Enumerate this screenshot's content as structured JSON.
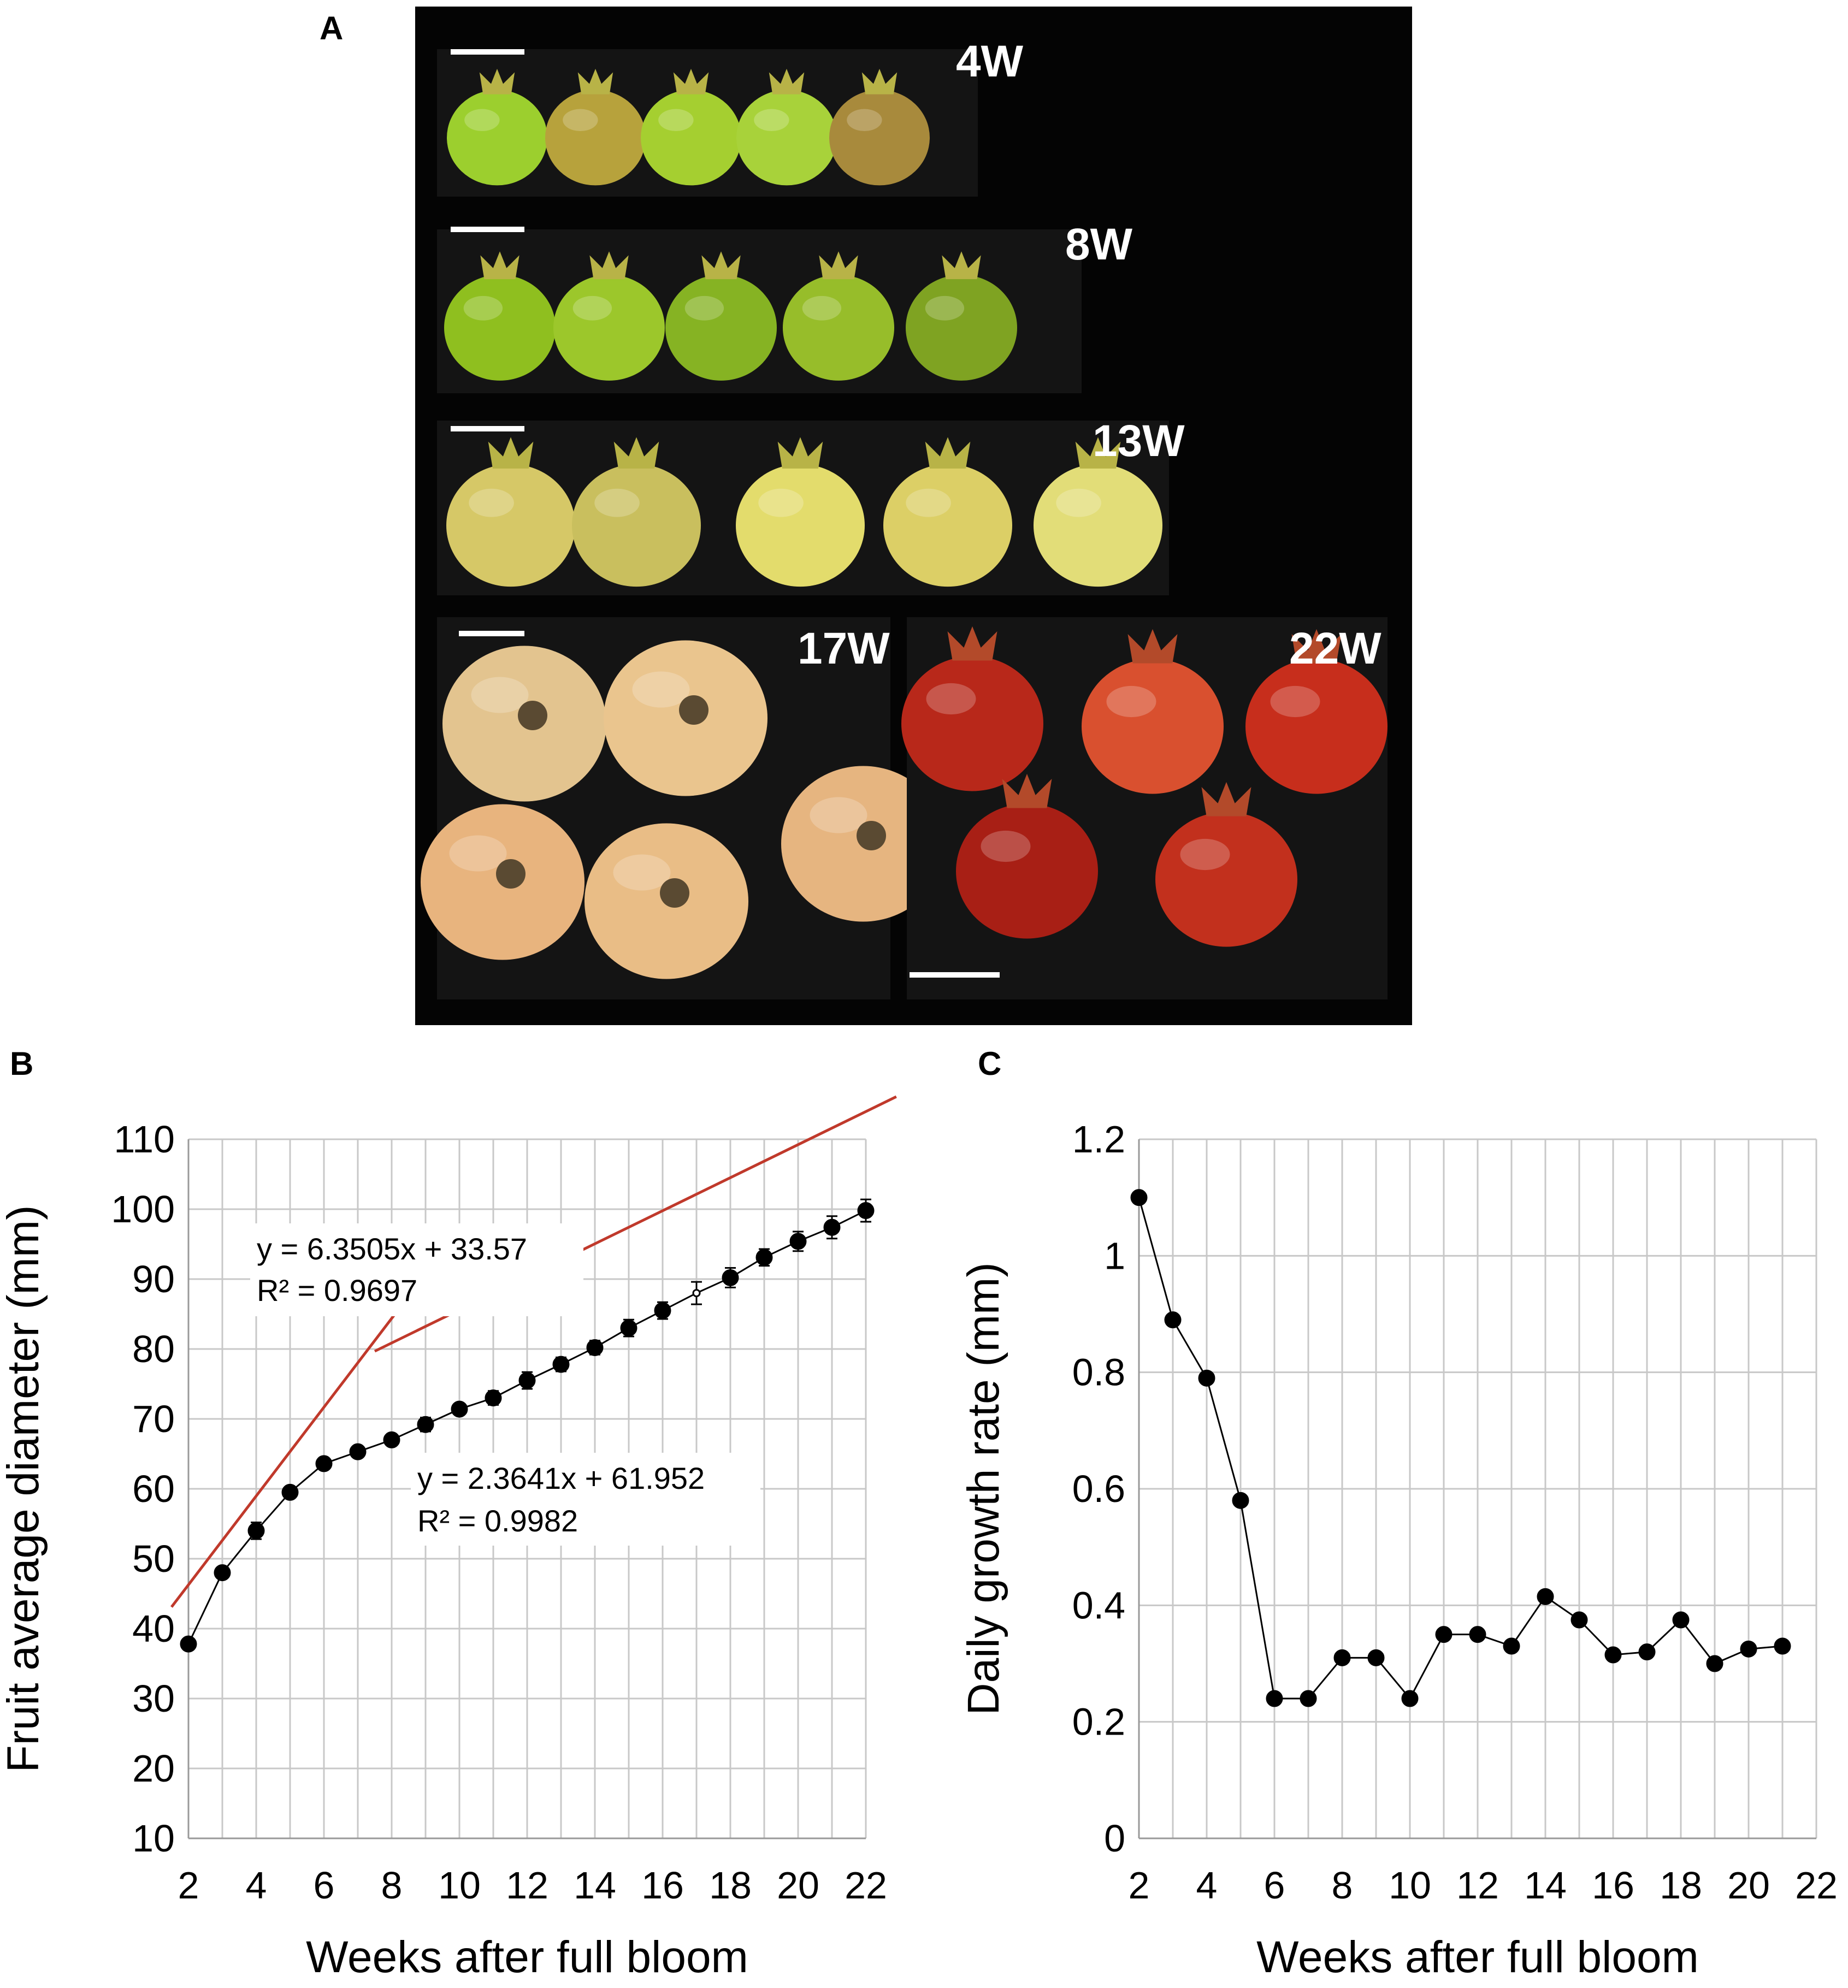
{
  "panels": {
    "a_label": "A",
    "b_label": "B",
    "c_label": "C"
  },
  "photo": {
    "rows": [
      {
        "label": "4W",
        "colors": [
          "#9ccf2e",
          "#b7a23c",
          "#a5cf30",
          "#a8d23a",
          "#a88a3c"
        ],
        "stage": "small"
      },
      {
        "label": "8W",
        "colors": [
          "#8fbf1f",
          "#9cc72b",
          "#86b323",
          "#97bd2a",
          "#7fa322"
        ],
        "stage": "medium"
      },
      {
        "label": "13W",
        "colors": [
          "#d6c867",
          "#c9bf5e",
          "#e3dc6c",
          "#dccf66",
          "#e2dd78"
        ],
        "stage": "large"
      },
      {
        "label": "17W",
        "colors": [
          "#e3c48f",
          "#eac58e",
          "#e6b580",
          "#e8b47e",
          "#e9bd86"
        ],
        "stage": "ripening"
      },
      {
        "label": "22W",
        "colors": [
          "#b8281a",
          "#d9502f",
          "#c72e1c",
          "#a81f15",
          "#c2301d"
        ],
        "stage": "mature"
      }
    ]
  },
  "chart_data": [
    {
      "type": "line",
      "panel": "B",
      "xlabel": "Weeks after full bloom",
      "ylabel": "Fruit average diameter  (mm)",
      "xlim": [
        2,
        22
      ],
      "ylim": [
        10,
        110
      ],
      "xticks": [
        2,
        4,
        6,
        8,
        10,
        12,
        14,
        16,
        18,
        20,
        22
      ],
      "yticks": [
        10,
        20,
        30,
        40,
        50,
        60,
        70,
        80,
        90,
        100,
        110
      ],
      "x": [
        2,
        3,
        4,
        5,
        6,
        7,
        8,
        9,
        10,
        11,
        12,
        13,
        14,
        15,
        16,
        17,
        18,
        19,
        20,
        21,
        22
      ],
      "y": [
        37.8,
        48,
        54,
        59.5,
        63.6,
        65.3,
        67,
        69.2,
        71.4,
        73,
        75.5,
        77.8,
        80.2,
        83,
        85.5,
        88,
        90.2,
        93.1,
        95.4,
        97.4,
        99.8
      ],
      "err": [
        0.6,
        0.6,
        1.2,
        0.5,
        0.8,
        0.8,
        0.8,
        1.0,
        0.8,
        1.0,
        1.2,
        1.0,
        1.0,
        1.2,
        1.2,
        1.6,
        1.4,
        1.2,
        1.4,
        1.6,
        1.6
      ],
      "hollow_marker_index": [
        15
      ],
      "grid": true,
      "trendlines": [
        {
          "equation": "y = 6.3505x + 33.57",
          "r2": "R² = 0.9697",
          "slope": 6.3505,
          "intercept": 33.57,
          "x_range": [
            1.5,
            9
          ],
          "color": "#c0392b"
        },
        {
          "equation": "y = 2.3641x + 61.952",
          "r2": "R² = 0.9982",
          "slope": 2.3641,
          "intercept": 61.952,
          "x_range": [
            7.5,
            22.9
          ],
          "color": "#c0392b"
        }
      ]
    },
    {
      "type": "line",
      "panel": "C",
      "xlabel": "Weeks after full bloom",
      "ylabel": "Daily growth  rate (mm)",
      "xlim": [
        2,
        22
      ],
      "ylim": [
        0,
        1.2
      ],
      "xticks": [
        2,
        4,
        6,
        8,
        10,
        12,
        14,
        16,
        18,
        20,
        22
      ],
      "yticks": [
        "0",
        "0.2",
        "0.4",
        "0.6",
        "0.8",
        "1",
        "1.2"
      ],
      "ytick_values": [
        0,
        0.2,
        0.4,
        0.6,
        0.8,
        1,
        1.2
      ],
      "x": [
        2,
        3,
        4,
        5,
        6,
        7,
        8,
        9,
        10,
        11,
        12,
        13,
        14,
        15,
        16,
        17,
        18,
        19,
        20,
        21
      ],
      "y": [
        1.1,
        0.89,
        0.79,
        0.58,
        0.24,
        0.24,
        0.31,
        0.31,
        0.24,
        0.35,
        0.35,
        0.33,
        0.415,
        0.375,
        0.315,
        0.32,
        0.375,
        0.3,
        0.325,
        0.33
      ],
      "grid": true
    }
  ]
}
